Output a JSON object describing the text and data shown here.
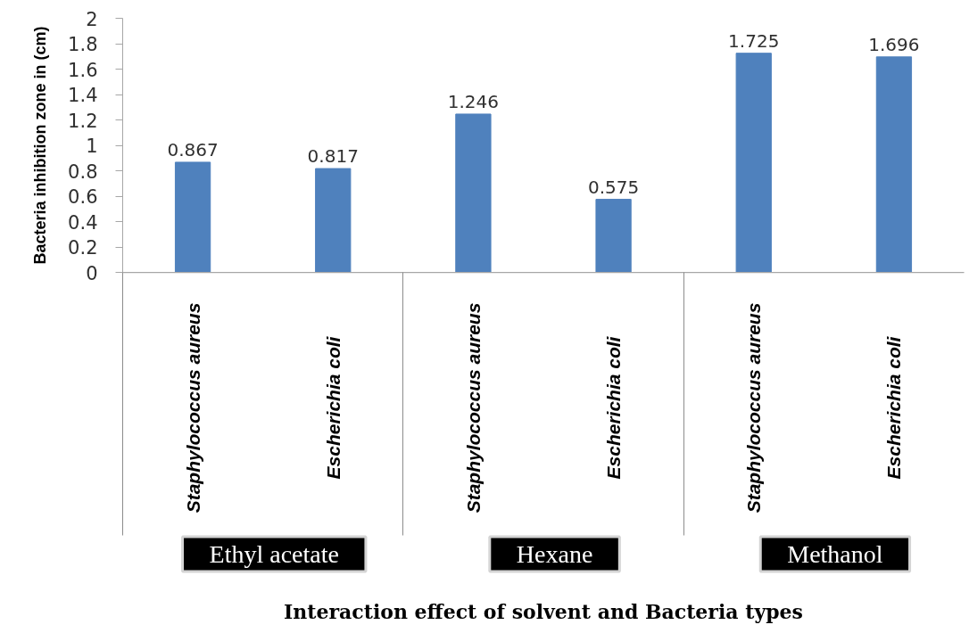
{
  "chart_data": {
    "type": "bar",
    "xlabel": "Interaction effect of solvent and Bacteria types",
    "ylabel": "Bacteria inhibition zone in (cm)",
    "categories": [
      "Staphylococcus aureus",
      "Escherichia coli",
      "Staphylococcus aureus",
      "Escherichia coli",
      "Staphylococcus aureus",
      "Escherichia coli"
    ],
    "values": [
      0.867,
      0.817,
      1.246,
      0.575,
      1.725,
      1.696
    ],
    "color": "#4f81bd",
    "ylim": [
      0,
      2
    ],
    "yticks": [
      0,
      0.2,
      0.4,
      0.6,
      0.8,
      1,
      1.2,
      1.4,
      1.6,
      1.8,
      2
    ],
    "data_labels": true,
    "annotations": [
      "Ethyl acetate",
      "Hexane",
      "Methanol"
    ]
  }
}
